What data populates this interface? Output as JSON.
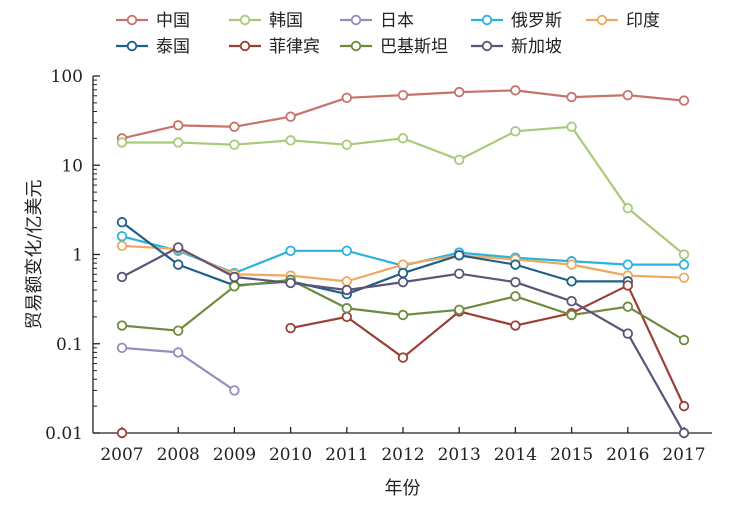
{
  "chart_data": {
    "type": "line",
    "title": "",
    "xlabel": "年份",
    "ylabel": "贸易额变化/亿美元",
    "y_scale": "log",
    "ylim": [
      0.01,
      100
    ],
    "y_ticks": [
      "0.01",
      "0.1",
      "1",
      "10",
      "100"
    ],
    "x": [
      "2007",
      "2008",
      "2009",
      "2010",
      "2011",
      "2012",
      "2013",
      "2014",
      "2015",
      "2016",
      "2017"
    ],
    "grid": false,
    "legend_position": "top",
    "series": [
      {
        "name": "中国",
        "color": "#c8736a",
        "values": [
          20,
          28,
          27,
          35,
          57,
          61,
          66,
          69,
          58,
          61,
          53
        ]
      },
      {
        "name": "韩国",
        "color": "#a9c97b",
        "values": [
          18,
          18,
          17,
          19,
          17,
          20,
          11.5,
          24,
          27,
          3.3,
          1.0
        ]
      },
      {
        "name": "日本",
        "color": "#9b8bbd",
        "values": [
          0.09,
          0.08,
          0.03,
          null,
          null,
          null,
          null,
          null,
          null,
          null,
          null
        ]
      },
      {
        "name": "俄罗斯",
        "color": "#2ab3dc",
        "values": [
          1.6,
          1.1,
          0.62,
          1.1,
          1.1,
          0.75,
          1.05,
          0.92,
          0.84,
          0.77,
          0.77
        ]
      },
      {
        "name": "印度",
        "color": "#f0a860",
        "values": [
          1.25,
          1.15,
          0.6,
          0.58,
          0.5,
          0.77,
          0.98,
          0.88,
          0.77,
          0.58,
          0.55
        ]
      },
      {
        "name": "泰国",
        "color": "#1f5f88",
        "values": [
          2.3,
          0.77,
          0.45,
          0.5,
          0.36,
          0.62,
          0.98,
          0.77,
          0.5,
          0.5,
          null
        ]
      },
      {
        "name": "菲律宾",
        "color": "#9b4038",
        "values": [
          0.01,
          null,
          null,
          0.15,
          0.2,
          0.07,
          0.23,
          0.16,
          0.22,
          0.45,
          0.02
        ]
      },
      {
        "name": "巴基斯坦",
        "color": "#6e8b3d",
        "values": [
          0.16,
          0.14,
          0.44,
          0.52,
          0.25,
          0.21,
          0.24,
          0.34,
          0.21,
          0.26,
          0.11
        ]
      },
      {
        "name": "新加坡",
        "color": "#5a5577",
        "values": [
          0.56,
          1.2,
          0.56,
          0.48,
          0.4,
          0.49,
          0.61,
          0.49,
          0.3,
          0.13,
          0.01
        ]
      }
    ]
  }
}
